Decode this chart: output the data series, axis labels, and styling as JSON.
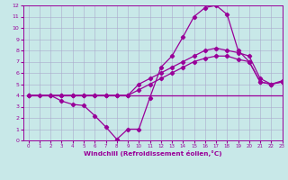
{
  "bg_color": "#c8e8e8",
  "line_color": "#990099",
  "xlim": [
    -0.5,
    23
  ],
  "ylim": [
    0,
    12
  ],
  "xticks": [
    0,
    1,
    2,
    3,
    4,
    5,
    6,
    7,
    8,
    9,
    10,
    11,
    12,
    13,
    14,
    15,
    16,
    17,
    18,
    19,
    20,
    21,
    22,
    23
  ],
  "yticks": [
    0,
    1,
    2,
    3,
    4,
    5,
    6,
    7,
    8,
    9,
    10,
    11,
    12
  ],
  "xlabel": "Windchill (Refroidissement éolien,°C)",
  "s1x": [
    0,
    1,
    2,
    3,
    4,
    5,
    6,
    7,
    8,
    9,
    10,
    11,
    12,
    13,
    14,
    15,
    16,
    17,
    18,
    19,
    20,
    21,
    22,
    23
  ],
  "s1y": [
    4,
    4,
    4,
    4,
    4,
    4,
    4,
    4,
    4,
    4,
    4,
    4,
    4,
    4,
    4,
    4,
    4,
    4,
    4,
    4,
    4,
    4,
    4,
    4
  ],
  "s2x": [
    0,
    2,
    3,
    4,
    5,
    6,
    7,
    8,
    9,
    10,
    11,
    12,
    13,
    14,
    15,
    16,
    17,
    18,
    19,
    20,
    21,
    22,
    23
  ],
  "s2y": [
    4,
    4,
    4,
    4,
    4,
    4,
    4,
    4,
    4,
    4.5,
    5.0,
    5.5,
    6.0,
    6.5,
    7.0,
    7.3,
    7.5,
    7.5,
    7.2,
    7.0,
    5.2,
    5.0,
    5.2
  ],
  "s3x": [
    0,
    2,
    3,
    4,
    5,
    6,
    7,
    8,
    9,
    10,
    11,
    12,
    13,
    14,
    15,
    16,
    17,
    18,
    19,
    20,
    21,
    22,
    23
  ],
  "s3y": [
    4,
    4,
    4,
    4,
    4,
    4,
    4,
    4,
    4,
    5.0,
    5.5,
    6.0,
    6.5,
    7.0,
    7.5,
    8.0,
    8.2,
    8.0,
    7.8,
    7.5,
    5.5,
    5.0,
    5.3
  ],
  "s4x": [
    0,
    1,
    2,
    3,
    4,
    5,
    6,
    7,
    8,
    9,
    10,
    11,
    12,
    13,
    14,
    15,
    16,
    17,
    18,
    19,
    20,
    21,
    22,
    23
  ],
  "s4y": [
    4,
    4,
    4,
    3.5,
    3.2,
    3.1,
    2.2,
    1.2,
    0.1,
    1.0,
    1.0,
    3.8,
    6.5,
    7.5,
    9.2,
    11.0,
    11.8,
    12.0,
    11.2,
    8.0,
    7.0,
    5.2,
    5.0,
    5.2
  ]
}
